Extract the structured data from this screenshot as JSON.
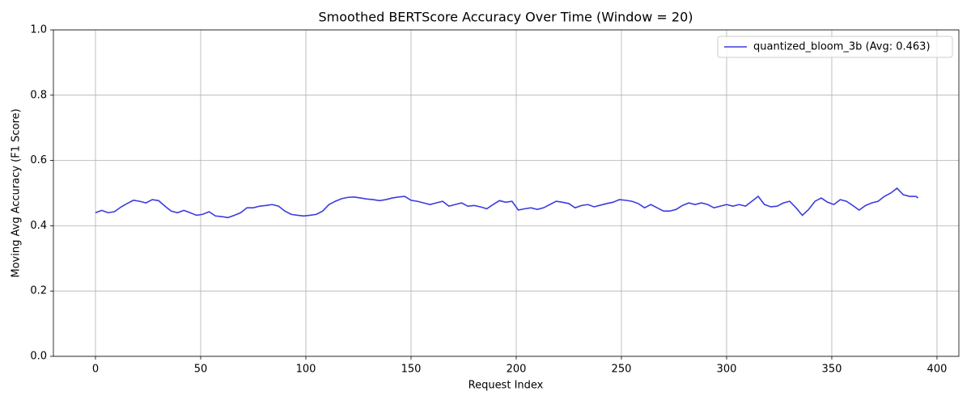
{
  "chart_data": {
    "type": "line",
    "title": "Smoothed BERTScore Accuracy Over Time (Window = 20)",
    "x_label": "Request Index",
    "y_label": "Moving Avg Accuracy (F1 Score)",
    "x": [
      0,
      3,
      6,
      9,
      12,
      15,
      18,
      21,
      24,
      27,
      30,
      33,
      36,
      39,
      42,
      45,
      48,
      51,
      54,
      57,
      60,
      63,
      66,
      69,
      72,
      75,
      78,
      81,
      84,
      87,
      90,
      93,
      96,
      99,
      102,
      105,
      108,
      111,
      114,
      117,
      120,
      123,
      126,
      129,
      132,
      135,
      138,
      141,
      144,
      147,
      150,
      153,
      156,
      159,
      162,
      165,
      168,
      171,
      174,
      177,
      180,
      183,
      186,
      189,
      192,
      195,
      198,
      201,
      204,
      207,
      210,
      213,
      216,
      219,
      222,
      225,
      228,
      231,
      234,
      237,
      240,
      243,
      246,
      249,
      252,
      255,
      258,
      261,
      264,
      267,
      270,
      273,
      276,
      279,
      282,
      285,
      288,
      291,
      294,
      297,
      300,
      303,
      306,
      309,
      312,
      315,
      318,
      321,
      324,
      327,
      330,
      333,
      336,
      339,
      342,
      345,
      348,
      351,
      354,
      357,
      360,
      363,
      366,
      369,
      372,
      375,
      378,
      381,
      384,
      387,
      390,
      391
    ],
    "series": [
      {
        "name": "quantized_bloom_3b (Avg: 0.463)",
        "color": "#3b3bdf",
        "values": [
          0.44,
          0.447,
          0.44,
          0.443,
          0.457,
          0.468,
          0.478,
          0.475,
          0.47,
          0.48,
          0.477,
          0.46,
          0.445,
          0.44,
          0.447,
          0.44,
          0.432,
          0.435,
          0.443,
          0.43,
          0.428,
          0.425,
          0.432,
          0.44,
          0.455,
          0.455,
          0.46,
          0.462,
          0.465,
          0.46,
          0.445,
          0.435,
          0.432,
          0.43,
          0.432,
          0.435,
          0.445,
          0.465,
          0.475,
          0.483,
          0.487,
          0.488,
          0.485,
          0.482,
          0.48,
          0.477,
          0.48,
          0.485,
          0.488,
          0.49,
          0.478,
          0.475,
          0.47,
          0.465,
          0.47,
          0.475,
          0.46,
          0.465,
          0.47,
          0.46,
          0.462,
          0.458,
          0.452,
          0.465,
          0.477,
          0.472,
          0.475,
          0.448,
          0.452,
          0.455,
          0.45,
          0.455,
          0.465,
          0.475,
          0.472,
          0.468,
          0.455,
          0.462,
          0.465,
          0.458,
          0.463,
          0.468,
          0.472,
          0.48,
          0.478,
          0.475,
          0.468,
          0.455,
          0.465,
          0.455,
          0.445,
          0.445,
          0.45,
          0.462,
          0.47,
          0.465,
          0.47,
          0.465,
          0.455,
          0.46,
          0.465,
          0.46,
          0.465,
          0.46,
          0.475,
          0.49,
          0.465,
          0.458,
          0.46,
          0.47,
          0.475,
          0.455,
          0.432,
          0.45,
          0.475,
          0.485,
          0.472,
          0.465,
          0.48,
          0.475,
          0.462,
          0.448,
          0.462,
          0.47,
          0.475,
          0.49,
          0.5,
          0.515,
          0.495,
          0.49,
          0.49,
          0.485
        ]
      }
    ],
    "xlim": [
      -20,
      410.4
    ],
    "ylim": [
      0,
      1
    ],
    "xticks": [
      0,
      50,
      100,
      150,
      200,
      250,
      300,
      350,
      400
    ],
    "yticks": [
      {
        "value": 0,
        "label": "0.0"
      },
      0.2,
      0.4,
      0.6,
      0.8,
      {
        "value": 1,
        "label": "1.0"
      }
    ],
    "grid": true,
    "legend": "upper right"
  }
}
